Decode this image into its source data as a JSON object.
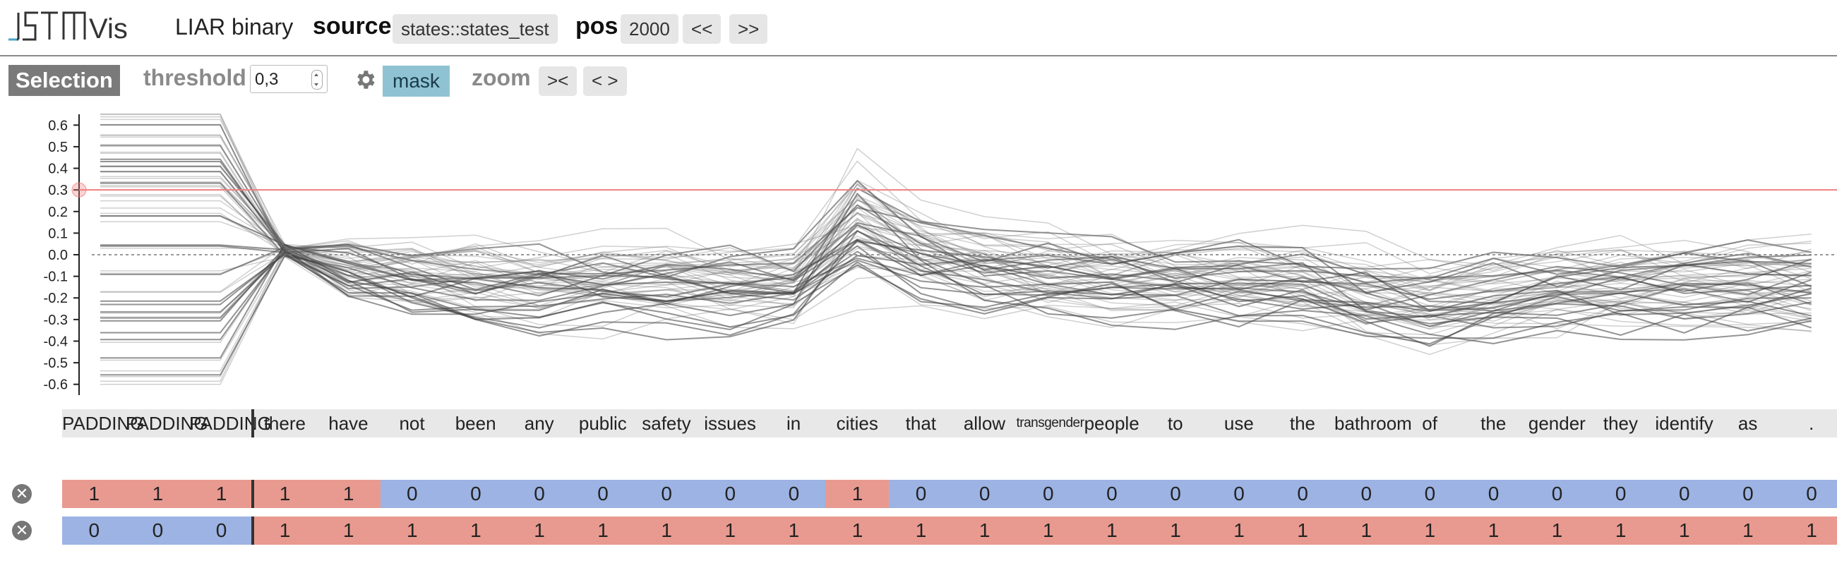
{
  "header": {
    "app_name": "LSTMVis",
    "dataset": "LIAR binary",
    "source_label": "source",
    "source_value": "states::states_test",
    "pos_label": "pos",
    "pos_value": "2000",
    "prev_label": "<<",
    "next_label": ">>"
  },
  "selection": {
    "label": "Selection",
    "threshold_label": "threshold",
    "threshold_value": "0,3",
    "settings_icon": "gear-icon",
    "mask_label": "mask",
    "zoom_label": "zoom",
    "zoom_in_label": "><",
    "zoom_out_label": "< >"
  },
  "colors": {
    "one": "#e99a90",
    "zero": "#9cb3e3",
    "threshold_line": "#f08080",
    "mask": "#8fc3d3"
  },
  "chart_data": {
    "type": "line",
    "ylim": [
      -0.65,
      0.65
    ],
    "yticks": [
      "0.6",
      "0.5",
      "0.4",
      "0.3",
      "0.2",
      "0.1",
      "0.0",
      "-0.1",
      "-0.2",
      "-0.3",
      "-0.4",
      "-0.5",
      "-0.6"
    ],
    "threshold": 0.3,
    "series_count": 60
  },
  "words": [
    "PADDING",
    "PADDING",
    "PADDING",
    "there",
    "have",
    "not",
    "been",
    "any",
    "public",
    "safety",
    "issues",
    "in",
    "cities",
    "that",
    "allow",
    "transgender",
    "people",
    "to",
    "use",
    "the",
    "bathroom",
    "of",
    "the",
    "gender",
    "they",
    "identify",
    "as",
    "."
  ],
  "rows": [
    {
      "close_icon": "close-icon",
      "close_glyph": "✕",
      "values": [
        "1",
        "1",
        "1",
        "1",
        "1",
        "0",
        "0",
        "0",
        "0",
        "0",
        "0",
        "0",
        "1",
        "0",
        "0",
        "0",
        "0",
        "0",
        "0",
        "0",
        "0",
        "0",
        "0",
        "0",
        "0",
        "0",
        "0",
        "0"
      ]
    },
    {
      "close_icon": "close-icon",
      "close_glyph": "✕",
      "values": [
        "0",
        "0",
        "0",
        "1",
        "1",
        "1",
        "1",
        "1",
        "1",
        "1",
        "1",
        "1",
        "1",
        "1",
        "1",
        "1",
        "1",
        "1",
        "1",
        "1",
        "1",
        "1",
        "1",
        "1",
        "1",
        "1",
        "1",
        "1"
      ]
    }
  ]
}
